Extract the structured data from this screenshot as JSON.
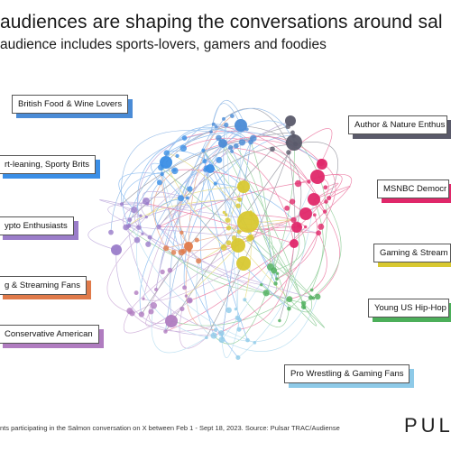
{
  "header": {
    "title": "audiences are shaping the conversations around sal",
    "subtitle": "audience includes sports-lovers, gamers and foodies"
  },
  "segments": [
    {
      "label": "British Food & Wine Lovers",
      "color": "#4a8bd6"
    },
    {
      "label": "rt-leaning, Sporty Brits",
      "color": "#3a8ee6"
    },
    {
      "label": "ypto Enthusiasts",
      "color": "#9a7cc9"
    },
    {
      "label": "g & Streaming Fans",
      "color": "#e07a4a"
    },
    {
      "label": "Conservative American",
      "color": "#b07cc0"
    },
    {
      "label": "Author & Nature Enthus",
      "color": "#5a5a6a"
    },
    {
      "label": "MSNBC Democr",
      "color": "#e0286a"
    },
    {
      "label": "Gaming & Stream",
      "color": "#d8c830"
    },
    {
      "label": "Young US Hip-Hop",
      "color": "#4caf5a"
    },
    {
      "label": "Pro Wrestling & Gaming Fans",
      "color": "#8ecae8"
    }
  ],
  "footer": {
    "source": "nts participating in the Salmon conversation on X between Feb 1 - Sept 18, 2023. Source: Pulsar TRAC/Audiense",
    "brand": "PULSAR"
  }
}
